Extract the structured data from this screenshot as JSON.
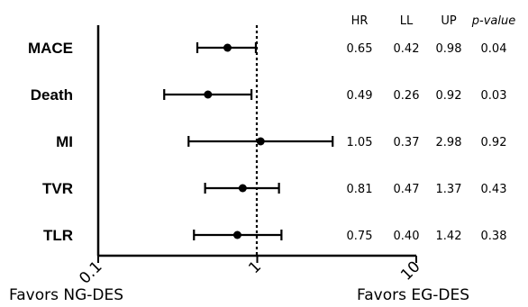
{
  "chart_data": {
    "type": "forest",
    "x_scale": "log",
    "xlim": [
      0.1,
      10
    ],
    "x_ticks": [
      "0.1",
      "1",
      "10"
    ],
    "reference_line": 1,
    "favors": {
      "left": "Favors NG-DES",
      "right": "Favors EG-DES"
    },
    "columns": [
      "HR",
      "LL",
      "UP",
      "p-value"
    ],
    "rows": [
      {
        "label": "MACE",
        "hr": 0.65,
        "ll": 0.42,
        "up": 0.98,
        "p": 0.04,
        "hr_text": "0.65",
        "ll_text": "0.42",
        "up_text": "0.98",
        "p_text": "0.04"
      },
      {
        "label": "Death",
        "hr": 0.49,
        "ll": 0.26,
        "up": 0.92,
        "p": 0.03,
        "hr_text": "0.49",
        "ll_text": "0.26",
        "up_text": "0.92",
        "p_text": "0.03"
      },
      {
        "label": "MI",
        "hr": 1.05,
        "ll": 0.37,
        "up": 2.98,
        "p": 0.92,
        "hr_text": "1.05",
        "ll_text": "0.37",
        "up_text": "2.98",
        "p_text": "0.92"
      },
      {
        "label": "TVR",
        "hr": 0.81,
        "ll": 0.47,
        "up": 1.37,
        "p": 0.43,
        "hr_text": "0.81",
        "ll_text": "0.47",
        "up_text": "1.37",
        "p_text": "0.43"
      },
      {
        "label": "TLR",
        "hr": 0.75,
        "ll": 0.4,
        "up": 1.42,
        "p": 0.38,
        "hr_text": "0.75",
        "ll_text": "0.40",
        "up_text": "1.42",
        "p_text": "0.38"
      }
    ]
  }
}
